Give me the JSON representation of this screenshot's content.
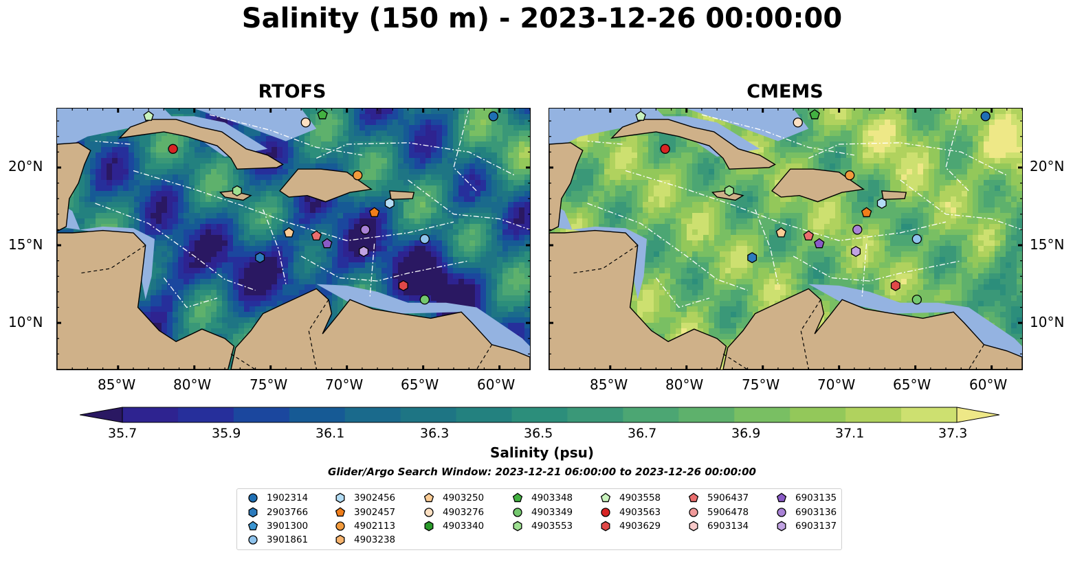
{
  "title": "Salinity (150 m) - 2023-12-26 00:00:00",
  "panels": [
    {
      "title": "RTOFS",
      "palette": "rtofs"
    },
    {
      "title": "CMEMS",
      "palette": "cmems"
    }
  ],
  "axes": {
    "lon_ticks": [
      "85°W",
      "80°W",
      "75°W",
      "70°W",
      "65°W",
      "60°W"
    ],
    "lat_ticks": [
      "20°N",
      "15°N",
      "10°N"
    ]
  },
  "colorbar": {
    "label": "Salinity (psu)",
    "range": [
      35.7,
      37.3
    ],
    "ticks": [
      "35.7",
      "35.9",
      "36.1",
      "36.3",
      "36.5",
      "36.7",
      "36.9",
      "37.1",
      "37.3"
    ],
    "colors": [
      "#2a1862",
      "#2e2390",
      "#262f9b",
      "#1b479e",
      "#165a95",
      "#1a6a8c",
      "#1e7584",
      "#23817f",
      "#2c8e7b",
      "#3a9878",
      "#4ca673",
      "#5eb16c",
      "#79bf63",
      "#93c85a",
      "#b0d25e",
      "#cde070",
      "#eee887"
    ]
  },
  "search_window": "Glider/Argo Search Window: 2023-12-21 06:00:00 to 2023-12-26 00:00:00",
  "legend": [
    {
      "id": "1902314",
      "shape": "circle",
      "color": "#1f6fb4"
    },
    {
      "id": "2903766",
      "shape": "hexagon",
      "color": "#2c7bbd"
    },
    {
      "id": "3901300",
      "shape": "pentagon",
      "color": "#3b95d1"
    },
    {
      "id": "3901861",
      "shape": "circle",
      "color": "#8fc3ec"
    },
    {
      "id": "3902456",
      "shape": "hexagon",
      "color": "#b3ddf5"
    },
    {
      "id": "3902457",
      "shape": "pentagon",
      "color": "#f07e1a"
    },
    {
      "id": "4902113",
      "shape": "circle",
      "color": "#f29b3d"
    },
    {
      "id": "4903238",
      "shape": "hexagon",
      "color": "#f7b46e"
    },
    {
      "id": "4903250",
      "shape": "pentagon",
      "color": "#fbcc95"
    },
    {
      "id": "4903276",
      "shape": "circle",
      "color": "#fde0c2"
    },
    {
      "id": "4903340",
      "shape": "hexagon",
      "color": "#2a9a2a"
    },
    {
      "id": "4903348",
      "shape": "pentagon",
      "color": "#43b141"
    },
    {
      "id": "4903349",
      "shape": "circle",
      "color": "#74c86e"
    },
    {
      "id": "4903553",
      "shape": "hexagon",
      "color": "#9ee091"
    },
    {
      "id": "4903558",
      "shape": "pentagon",
      "color": "#c9f3bd"
    },
    {
      "id": "4903563",
      "shape": "circle",
      "color": "#d82424"
    },
    {
      "id": "4903629",
      "shape": "hexagon",
      "color": "#e14848"
    },
    {
      "id": "5906437",
      "shape": "pentagon",
      "color": "#ea6e6e"
    },
    {
      "id": "5906478",
      "shape": "circle",
      "color": "#f19a9a"
    },
    {
      "id": "6903134",
      "shape": "hexagon",
      "color": "#f8c9c9"
    },
    {
      "id": "6903135",
      "shape": "pentagon",
      "color": "#8a5bc7"
    },
    {
      "id": "6903136",
      "shape": "circle",
      "color": "#a982d6"
    },
    {
      "id": "6903137",
      "shape": "hexagon",
      "color": "#c1a3e2"
    }
  ],
  "map_colors": {
    "land": "#cfb189",
    "shallow": "#94b3e1",
    "border": "#000000"
  }
}
